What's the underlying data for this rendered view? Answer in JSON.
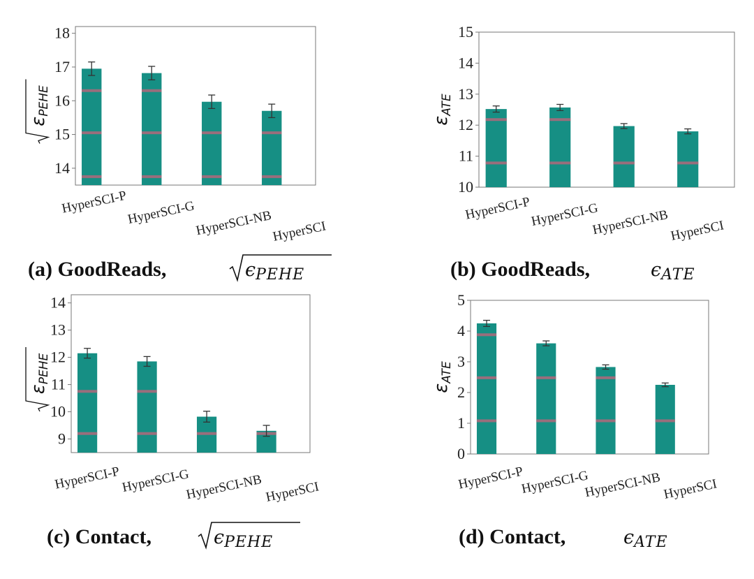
{
  "chart_data": [
    {
      "type": "bar",
      "panel": "a",
      "caption_label": "(a) GoodReads,",
      "caption_math": "ϵPEHE",
      "caption_math_sqrt": true,
      "ylabel": "εPEHE",
      "ylabel_sqrt": true,
      "categories": [
        "HyperSCI-P",
        "HyperSCI-G",
        "HyperSCI-NB",
        "HyperSCI"
      ],
      "values": [
        16.95,
        16.82,
        15.97,
        15.7
      ],
      "errors": [
        0.2,
        0.2,
        0.2,
        0.2
      ],
      "ylim": [
        13.5,
        18.2
      ],
      "yticks": [
        "14",
        "15",
        "16",
        "17",
        "18"
      ],
      "ytick_values": [
        14,
        15,
        16,
        17,
        18
      ],
      "band_lines": [
        13.75,
        15.05,
        16.3
      ]
    },
    {
      "type": "bar",
      "panel": "b",
      "caption_label": "(b) GoodReads,",
      "caption_math": "ϵATE",
      "caption_math_sqrt": false,
      "ylabel": "εATE",
      "ylabel_sqrt": false,
      "categories": [
        "HyperSCI-P",
        "HyperSCI-G",
        "HyperSCI-NB",
        "HyperSCI"
      ],
      "values": [
        12.52,
        12.57,
        11.97,
        11.8
      ],
      "errors": [
        0.1,
        0.1,
        0.08,
        0.08
      ],
      "ylim": [
        10,
        15
      ],
      "yticks": [
        "10",
        "11",
        "12",
        "13",
        "14",
        "15"
      ],
      "ytick_values": [
        10,
        11,
        12,
        13,
        14,
        15
      ],
      "band_lines": [
        10.78,
        12.18
      ]
    },
    {
      "type": "bar",
      "panel": "c",
      "caption_label": "(c) Contact,",
      "caption_math": "ϵPEHE",
      "caption_math_sqrt": true,
      "ylabel": "εPEHE",
      "ylabel_sqrt": true,
      "categories": [
        "HyperSCI-P",
        "HyperSCI-G",
        "HyperSCI-NB",
        "HyperSCI"
      ],
      "values": [
        12.15,
        11.85,
        9.82,
        9.3
      ],
      "errors": [
        0.18,
        0.18,
        0.2,
        0.2
      ],
      "ylim": [
        8.5,
        14.3
      ],
      "yticks": [
        "9",
        "10",
        "11",
        "12",
        "13",
        "14"
      ],
      "ytick_values": [
        9,
        10,
        11,
        12,
        13,
        14
      ],
      "band_lines": [
        9.2,
        10.75
      ]
    },
    {
      "type": "bar",
      "panel": "d",
      "caption_label": "(d) Contact,",
      "caption_math": "ϵATE",
      "caption_math_sqrt": false,
      "ylabel": "εATE",
      "ylabel_sqrt": false,
      "categories": [
        "HyperSCI-P",
        "HyperSCI-G",
        "HyperSCI-NB",
        "HyperSCI"
      ],
      "values": [
        4.25,
        3.6,
        2.83,
        2.25
      ],
      "errors": [
        0.1,
        0.08,
        0.07,
        0.06
      ],
      "ylim": [
        0,
        5
      ],
      "yticks": [
        "0",
        "1",
        "2",
        "3",
        "4",
        "5"
      ],
      "ytick_values": [
        0,
        1,
        2,
        3,
        4,
        5
      ],
      "band_lines": [
        1.08,
        2.48,
        3.88
      ]
    }
  ],
  "colors": {
    "bar": "#168f84",
    "band": "#b0687a",
    "axis": "#777777",
    "error": "#333333"
  }
}
